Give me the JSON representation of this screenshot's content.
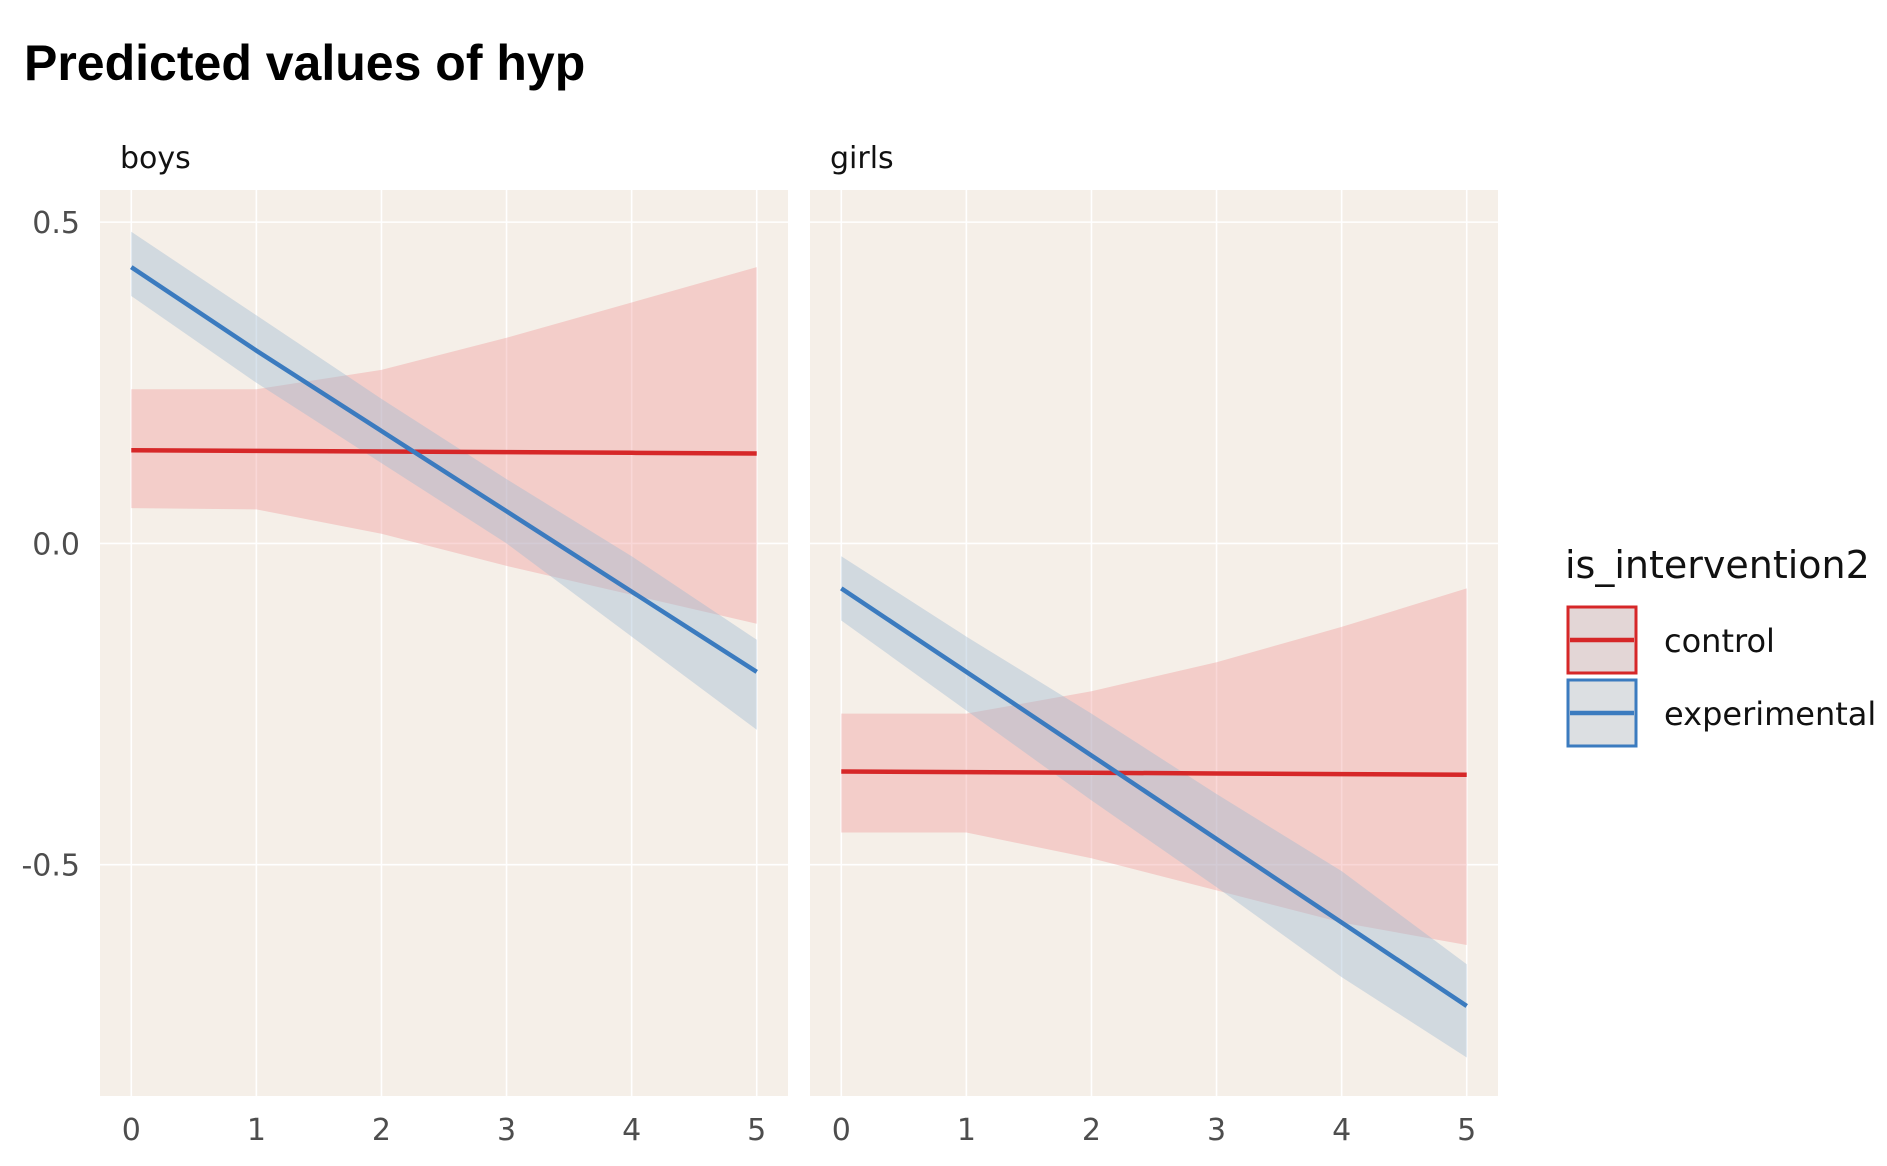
{
  "chart_data": {
    "type": "line",
    "title": "Predicted values of hyp",
    "xlabel": "",
    "ylabel": "",
    "x_ticks": [
      0,
      1,
      2,
      3,
      4,
      5
    ],
    "y_ticks": [
      0.5,
      0.0,
      -0.5
    ],
    "y_tick_labels": [
      "0.5",
      "0.0",
      "-0.5"
    ],
    "xlim": [
      -0.25,
      5.25
    ],
    "ylim": [
      -0.86,
      0.55
    ],
    "grid": true,
    "legend": {
      "title": "is_intervention2",
      "position": "right",
      "items": [
        {
          "label": "control",
          "color": "#d62728"
        },
        {
          "label": "experimental",
          "color": "#3b7bbf"
        }
      ]
    },
    "facets": [
      {
        "label": "boys",
        "series": [
          {
            "name": "control",
            "color": "#d62728",
            "x": [
              0,
              1,
              2,
              3,
              4,
              5
            ],
            "y": [
              0.145,
              0.144,
              0.143,
              0.142,
              0.141,
              0.14
            ],
            "lower": [
              0.055,
              0.053,
              0.015,
              -0.035,
              -0.08,
              -0.125
            ],
            "upper": [
              0.24,
              0.24,
              0.27,
              0.32,
              0.375,
              0.43
            ]
          },
          {
            "name": "experimental",
            "color": "#3b7bbf",
            "x": [
              0,
              1,
              2,
              3,
              4,
              5
            ],
            "y": [
              0.43,
              0.3,
              0.175,
              0.05,
              -0.075,
              -0.2
            ],
            "lower": [
              0.385,
              0.25,
              0.125,
              0.0,
              -0.145,
              -0.29
            ],
            "upper": [
              0.485,
              0.355,
              0.225,
              0.1,
              -0.02,
              -0.15
            ]
          }
        ]
      },
      {
        "label": "girls",
        "series": [
          {
            "name": "control",
            "color": "#d62728",
            "x": [
              0,
              1,
              2,
              3,
              4,
              5
            ],
            "y": [
              -0.355,
              -0.356,
              -0.357,
              -0.358,
              -0.359,
              -0.36
            ],
            "lower": [
              -0.45,
              -0.45,
              -0.49,
              -0.54,
              -0.59,
              -0.625
            ],
            "upper": [
              -0.265,
              -0.265,
              -0.23,
              -0.185,
              -0.13,
              -0.07
            ]
          },
          {
            "name": "experimental",
            "color": "#3b7bbf",
            "x": [
              0,
              1,
              2,
              3,
              4,
              5
            ],
            "y": [
              -0.07,
              -0.2,
              -0.33,
              -0.46,
              -0.59,
              -0.72
            ],
            "lower": [
              -0.12,
              -0.26,
              -0.4,
              -0.535,
              -0.675,
              -0.8
            ],
            "upper": [
              -0.02,
              -0.145,
              -0.265,
              -0.39,
              -0.51,
              -0.655
            ]
          }
        ]
      }
    ]
  }
}
